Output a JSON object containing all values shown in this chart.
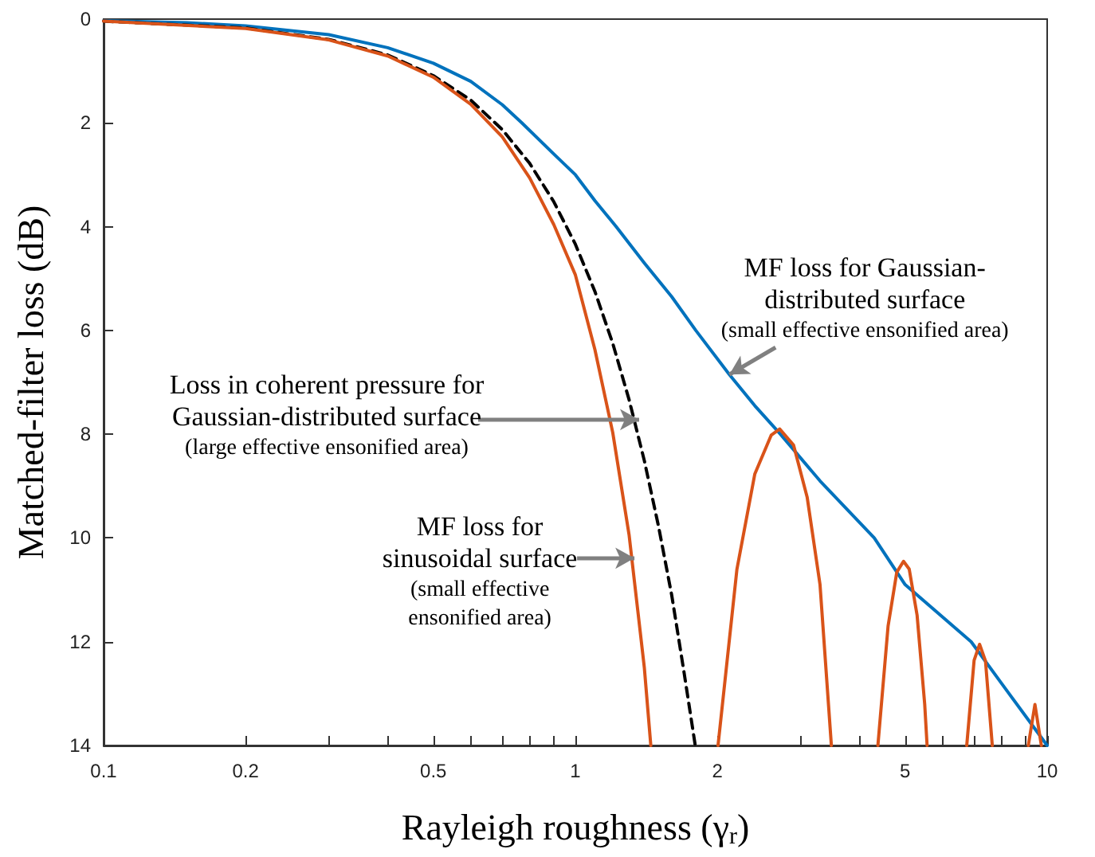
{
  "chart_data": {
    "type": "line",
    "xlabel": "Rayleigh roughness (γ$_{r}$)",
    "ylabel": "Matched-filter loss (dB)",
    "log": "x",
    "grid": false,
    "marker": "none",
    "xlim": [
      0.1,
      10
    ],
    "ylim": [
      14,
      0
    ],
    "xticks": [
      0.1,
      0.2,
      {
        "value": 0.3,
        "label": null
      },
      {
        "value": 0.4,
        "label": null
      },
      0.5,
      {
        "value": 0.6,
        "label": null
      },
      {
        "value": 0.7,
        "label": null
      },
      {
        "value": 0.8,
        "label": null
      },
      {
        "value": 0.9,
        "label": null
      },
      1,
      2,
      {
        "value": 3,
        "label": null
      },
      {
        "value": 4,
        "label": null
      },
      5,
      {
        "value": 6,
        "label": null
      },
      {
        "value": 7,
        "label": null
      },
      {
        "value": 8,
        "label": null
      },
      {
        "value": 9,
        "label": null
      },
      10
    ],
    "yticks": [
      0,
      2,
      4,
      6,
      8,
      10,
      12,
      14
    ],
    "series": [
      {
        "color": "#0072bd",
        "line_style": "solid",
        "x": [
          0.1,
          0.15,
          0.2,
          0.3,
          0.4,
          0.5,
          0.6,
          0.7,
          0.77,
          0.9,
          1,
          1.1,
          1.22,
          1.4,
          1.6,
          1.8,
          2.12,
          2.4,
          2.72,
          3.3,
          4.3,
          5,
          6.9,
          8,
          10
        ],
        "values": [
          0.03,
          0.07,
          0.13,
          0.3,
          0.55,
          0.85,
          1.2,
          1.65,
          2,
          2.6,
          3,
          3.5,
          4,
          4.7,
          5.35,
          6,
          6.85,
          7.45,
          8,
          8.9,
          10,
          10.9,
          12,
          12.8,
          14
        ]
      },
      {
        "color": "#000000",
        "line_style": "dashed",
        "x": [
          0.1,
          0.2,
          0.3,
          0.4,
          0.5,
          0.6,
          0.7,
          0.8,
          0.9,
          1,
          1.1,
          1.2,
          1.3,
          1.4,
          1.5,
          1.6,
          1.7,
          1.795
        ],
        "values": [
          0.04,
          0.17,
          0.39,
          0.69,
          1.09,
          1.56,
          2.13,
          2.78,
          3.52,
          4.34,
          5.25,
          6.25,
          7.34,
          8.51,
          9.77,
          11.1,
          12.6,
          14
        ]
      },
      {
        "color": "#d95319",
        "line_style": "solid",
        "x": [
          0.1,
          0.2,
          0.3,
          0.4,
          0.5,
          0.6,
          0.7,
          0.8,
          0.9,
          1,
          1.1,
          1.2,
          1.3,
          1.4,
          1.445,
          1.7,
          2.006,
          2.2,
          2.4,
          2.6,
          2.71,
          2.9,
          3.1,
          3.3,
          3.488,
          3.9,
          4.377,
          4.6,
          4.8,
          4.96,
          5.1,
          5.3,
          5.5,
          5.565,
          6.12,
          6.753,
          7.0,
          7.19,
          7.4,
          7.65,
          8.34,
          9.12,
          9.42,
          9.72
        ],
        "values": [
          0.04,
          0.18,
          0.4,
          0.71,
          1.12,
          1.64,
          2.27,
          3.06,
          3.96,
          4.93,
          6.37,
          7.97,
          9.95,
          12.5,
          14,
          null,
          14,
          10.6,
          8.77,
          8.02,
          7.9,
          8.21,
          9.22,
          10.9,
          14,
          null,
          14,
          11.7,
          10.66,
          10.45,
          10.6,
          11.49,
          13.2,
          14,
          null,
          14,
          12.36,
          12.05,
          12.37,
          14,
          null,
          14,
          13.21,
          14
        ]
      }
    ],
    "annotations": [
      {
        "text": "MF loss for Gaussian-\ndistributed surface\n(small effective ensonified area)",
        "x": 2.12,
        "y": 6.85
      },
      {
        "text": "Loss in coherent pressure for\nGaussian-distributed surface\n(large effective ensonified area)",
        "x": 1.365,
        "y": 7.72
      },
      {
        "text": "MF loss for\nsinusoidal surface\n(small effective\nensonified area)",
        "x": 1.334,
        "y": 10.39
      }
    ]
  }
}
